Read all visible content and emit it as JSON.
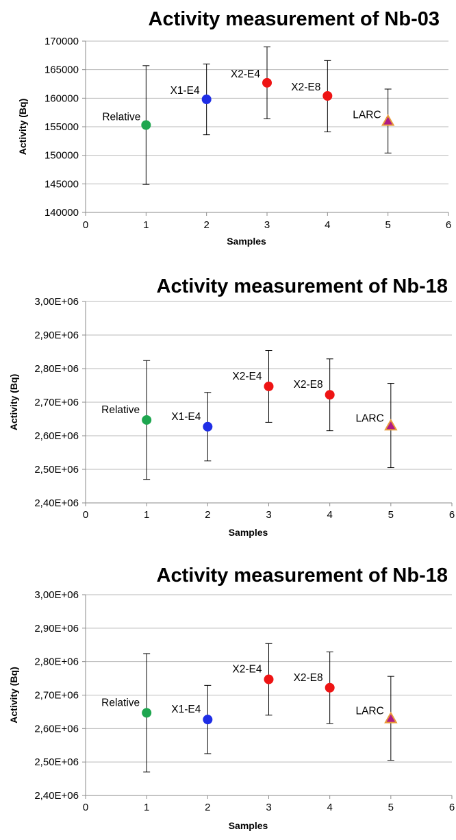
{
  "chart_data": [
    {
      "type": "scatter",
      "title": "Activity measurement of Nb-03",
      "xlabel": "Samples",
      "ylabel": "Activity (Bq)",
      "xlim": [
        0,
        6
      ],
      "ylim": [
        140000,
        170000
      ],
      "x_ticks": [
        "0",
        "1",
        "2",
        "3",
        "4",
        "5",
        "6"
      ],
      "y_ticks": [
        "140000",
        "145000",
        "150000",
        "155000",
        "160000",
        "165000",
        "170000"
      ],
      "grid": "horizontal",
      "points": [
        {
          "label": "Relative",
          "x": 1,
          "y": 155300,
          "err_low": 144900,
          "err_high": 165700,
          "color": "#1ea64f",
          "marker": "circle"
        },
        {
          "label": "X1-E4",
          "x": 2,
          "y": 159800,
          "err_low": 153600,
          "err_high": 166000,
          "color": "#1f2ee6",
          "marker": "circle"
        },
        {
          "label": "X2-E4",
          "x": 3,
          "y": 162700,
          "err_low": 156400,
          "err_high": 169000,
          "color": "#ee1414",
          "marker": "circle"
        },
        {
          "label": "X2-E8",
          "x": 4,
          "y": 160400,
          "err_low": 154100,
          "err_high": 166600,
          "color": "#ee1414",
          "marker": "circle"
        },
        {
          "label": "LARC",
          "x": 5,
          "y": 156000,
          "err_low": 150400,
          "err_high": 161600,
          "color": "#b01a86",
          "marker": "triangle"
        }
      ]
    },
    {
      "type": "scatter",
      "title": "Activity measurement of  Nb-18",
      "xlabel": "Samples",
      "ylabel": "Activity (Bq)",
      "xlim": [
        0,
        6
      ],
      "ylim": [
        2400000,
        3000000
      ],
      "x_ticks": [
        "0",
        "1",
        "2",
        "3",
        "4",
        "5",
        "6"
      ],
      "y_ticks": [
        "2,40E+06",
        "2,50E+06",
        "2,60E+06",
        "2,70E+06",
        "2,80E+06",
        "2,90E+06",
        "3,00E+06"
      ],
      "grid": "horizontal",
      "points": [
        {
          "label": "Relative",
          "x": 1,
          "y": 2647000,
          "err_low": 2470000,
          "err_high": 2824000,
          "color": "#1ea64f",
          "marker": "circle"
        },
        {
          "label": "X1-E4",
          "x": 2,
          "y": 2627000,
          "err_low": 2525000,
          "err_high": 2729000,
          "color": "#1f2ee6",
          "marker": "circle"
        },
        {
          "label": "X2-E4",
          "x": 3,
          "y": 2747000,
          "err_low": 2640000,
          "err_high": 2854000,
          "color": "#ee1414",
          "marker": "circle"
        },
        {
          "label": "X2-E8",
          "x": 4,
          "y": 2722000,
          "err_low": 2615000,
          "err_high": 2829000,
          "color": "#ee1414",
          "marker": "circle"
        },
        {
          "label": "LARC",
          "x": 5,
          "y": 2630000,
          "err_low": 2505000,
          "err_high": 2756000,
          "color": "#b01a86",
          "marker": "triangle"
        }
      ]
    },
    {
      "type": "scatter",
      "title": "Activity measurement of  Nb-18",
      "xlabel": "Samples",
      "ylabel": "Activity (Bq)",
      "xlim": [
        0,
        6
      ],
      "ylim": [
        2400000,
        3000000
      ],
      "x_ticks": [
        "0",
        "1",
        "2",
        "3",
        "4",
        "5",
        "6"
      ],
      "y_ticks": [
        "2,40E+06",
        "2,50E+06",
        "2,60E+06",
        "2,70E+06",
        "2,80E+06",
        "2,90E+06",
        "3,00E+06"
      ],
      "grid": "horizontal",
      "points": [
        {
          "label": "Relative",
          "x": 1,
          "y": 2647000,
          "err_low": 2470000,
          "err_high": 2824000,
          "color": "#1ea64f",
          "marker": "circle"
        },
        {
          "label": "X1-E4",
          "x": 2,
          "y": 2627000,
          "err_low": 2525000,
          "err_high": 2729000,
          "color": "#1f2ee6",
          "marker": "circle"
        },
        {
          "label": "X2-E4",
          "x": 3,
          "y": 2747000,
          "err_low": 2640000,
          "err_high": 2854000,
          "color": "#ee1414",
          "marker": "circle"
        },
        {
          "label": "X2-E8",
          "x": 4,
          "y": 2722000,
          "err_low": 2615000,
          "err_high": 2829000,
          "color": "#ee1414",
          "marker": "circle"
        },
        {
          "label": "LARC",
          "x": 5,
          "y": 2630000,
          "err_low": 2505000,
          "err_high": 2756000,
          "color": "#b01a86",
          "marker": "triangle"
        }
      ]
    }
  ]
}
